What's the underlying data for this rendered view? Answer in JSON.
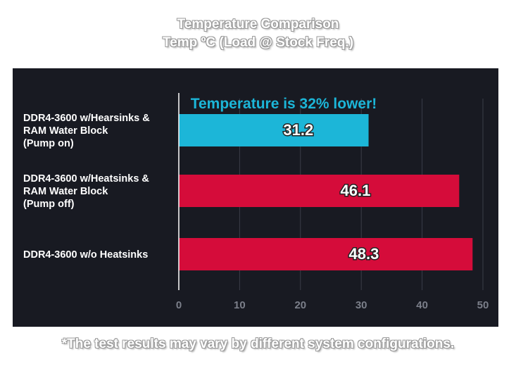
{
  "colors": {
    "panel_background": "#181a22",
    "highlight_bar": "#1cb6d8",
    "bar": "#d50c3a",
    "gridline": "#3a3d48",
    "tick_label": "#7b7f8a",
    "annotation": "#1cb6d8"
  },
  "chart_data": {
    "type": "bar",
    "orientation": "horizontal",
    "title": "Temperature Comparison",
    "subtitle": "Temp ºC (Load @ Stock Freq.)",
    "categories": [
      "DDR4-3600 w/Hearsinks & RAM Water Block (Pump on)",
      "DDR4-3600 w/Heatsinks & RAM Water Block (Pump off)",
      "DDR4-3600 w/o Heatsinks"
    ],
    "category_lines": [
      [
        "DDR4-3600 w/Hearsinks &",
        "RAM Water Block",
        "(Pump on)"
      ],
      [
        "DDR4-3600 w/Heatsinks &",
        "RAM Water Block",
        "(Pump off)"
      ],
      [
        "DDR4-3600 w/o Heatsinks"
      ]
    ],
    "values": [
      31.2,
      46.1,
      48.3
    ],
    "data_labels": [
      "31.2",
      "46.1",
      "48.3"
    ],
    "highlight_index": 0,
    "xlim": [
      0,
      50
    ],
    "x_ticks": [
      0,
      10,
      20,
      30,
      40,
      50
    ],
    "grid": true,
    "annotation": "Temperature is 32% lower!",
    "footnote": "*The test results may vary by different system configurations."
  }
}
